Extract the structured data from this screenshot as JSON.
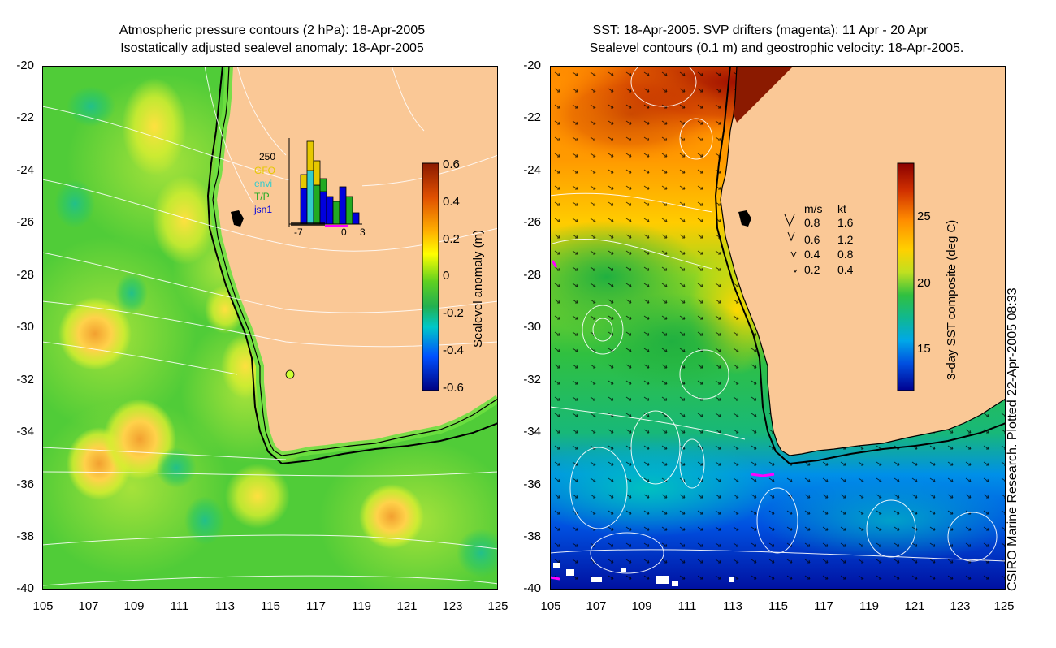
{
  "left_panel": {
    "title_line1": "Atmospheric pressure contours (2 hPa): 18-Apr-2005",
    "title_line2": "Isostatically adjusted sealevel anomaly: 18-Apr-2005",
    "colorbar_label": "Sealevel anomaly (m)",
    "colorbar_ticks": [
      "0.6",
      "0.4",
      "0.2",
      "0",
      "-0.2",
      "-0.4",
      "-0.6"
    ],
    "colorbar_colors": [
      "#8b1a00",
      "#ff8c00",
      "#ffff00",
      "#33cc33",
      "#00cccc",
      "#0044ff",
      "#000080"
    ],
    "inset": {
      "ymax_label": "250",
      "legend": [
        {
          "label": "GFO",
          "color": "#e6c800"
        },
        {
          "label": "envi",
          "color": "#33cccc"
        },
        {
          "label": "T/P",
          "color": "#22aa22"
        },
        {
          "label": "jsn1",
          "color": "#0000dd"
        }
      ],
      "x_ticks": [
        "-7",
        "0",
        "3"
      ]
    },
    "marker_color": "#ccff33"
  },
  "right_panel": {
    "title_line1": "SST: 18-Apr-2005. SVP drifters (magenta): 11 Apr - 20 Apr",
    "title_line2": "Sealevel contours (0.1 m) and geostrophic velocity: 18-Apr-2005.",
    "colorbar_label": "3-day SST composite (deg C)",
    "colorbar_ticks": [
      "25",
      "20",
      "15"
    ],
    "colorbar_colors": [
      "#8b0000",
      "#e06000",
      "#ffc000",
      "#c8e000",
      "#22bb44",
      "#00bbcc",
      "#0066ff",
      "#000099"
    ],
    "vector_legend": {
      "header_ms": "m/s",
      "header_kt": "kt",
      "rows": [
        {
          "ms": "0.8",
          "kt": "1.6"
        },
        {
          "ms": "0.6",
          "kt": "1.2"
        },
        {
          "ms": "0.4",
          "kt": "0.8"
        },
        {
          "ms": "0.2",
          "kt": "0.4"
        }
      ]
    },
    "drifter_color": "#ff00ff"
  },
  "axes": {
    "y_ticks": [
      "-20",
      "-22",
      "-24",
      "-26",
      "-28",
      "-30",
      "-32",
      "-34",
      "-36",
      "-38",
      "-40"
    ],
    "x_ticks": [
      "105",
      "107",
      "109",
      "111",
      "113",
      "115",
      "117",
      "119",
      "121",
      "123",
      "125"
    ]
  },
  "colors": {
    "land": "#fac896",
    "coast": "#000000",
    "contour": "#ffffff"
  },
  "credit": "CSIRO Marine Research. Plotted 22-Apr-2005 08:33"
}
